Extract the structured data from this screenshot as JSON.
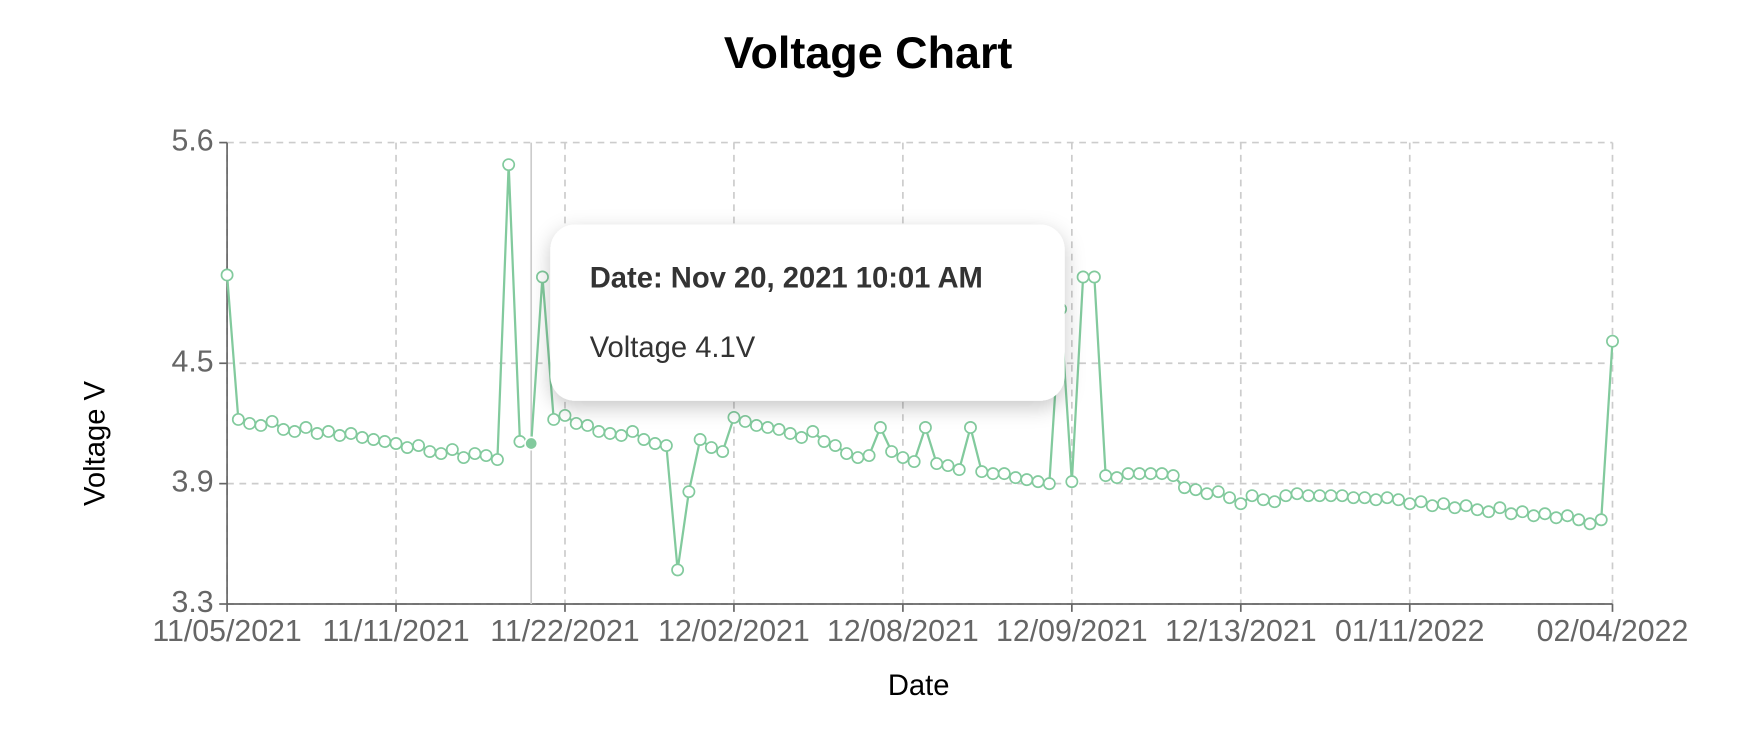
{
  "chart_data": {
    "type": "line",
    "title": "Voltage Chart",
    "x_label": "Date",
    "y_label": "Voltage V",
    "color": "#82ca9d",
    "grid": true,
    "ylim": [
      3.3,
      5.6
    ],
    "yticks": [
      3.3,
      3.9,
      4.5,
      5.6
    ],
    "categories": [
      "11/05/2021",
      null,
      null,
      null,
      null,
      null,
      null,
      null,
      null,
      null,
      null,
      null,
      null,
      null,
      null,
      "11/11/2021",
      null,
      null,
      null,
      null,
      null,
      null,
      null,
      null,
      null,
      null,
      null,
      null,
      null,
      null,
      "11/22/2021",
      null,
      null,
      null,
      null,
      null,
      null,
      null,
      null,
      null,
      null,
      null,
      null,
      null,
      null,
      "12/02/2021",
      null,
      null,
      null,
      null,
      null,
      null,
      null,
      null,
      null,
      null,
      null,
      null,
      null,
      null,
      "12/08/2021",
      null,
      null,
      null,
      null,
      null,
      null,
      null,
      null,
      null,
      null,
      null,
      null,
      null,
      null,
      "12/09/2021",
      null,
      null,
      null,
      null,
      null,
      null,
      null,
      null,
      null,
      null,
      null,
      null,
      null,
      null,
      "12/13/2021",
      null,
      null,
      null,
      null,
      null,
      null,
      null,
      null,
      null,
      null,
      null,
      null,
      null,
      null,
      "01/11/2022",
      null,
      null,
      null,
      null,
      null,
      null,
      null,
      null,
      null,
      null,
      null,
      null,
      null,
      null,
      null,
      null,
      null,
      "02/04/2022"
    ],
    "values": [
      4.94,
      4.22,
      4.2,
      4.19,
      4.21,
      4.17,
      4.16,
      4.18,
      4.15,
      4.16,
      4.14,
      4.15,
      4.13,
      4.12,
      4.11,
      4.1,
      4.08,
      4.09,
      4.06,
      4.05,
      4.07,
      4.03,
      4.05,
      4.04,
      4.02,
      5.49,
      4.11,
      4.1,
      4.93,
      4.22,
      4.24,
      4.2,
      4.19,
      4.16,
      4.15,
      4.14,
      4.16,
      4.12,
      4.1,
      4.09,
      3.47,
      3.86,
      4.12,
      4.08,
      4.06,
      4.23,
      4.21,
      4.19,
      4.18,
      4.17,
      4.15,
      4.13,
      4.16,
      4.11,
      4.09,
      4.05,
      4.03,
      4.04,
      4.18,
      4.06,
      4.03,
      4.01,
      4.18,
      4.0,
      3.99,
      3.97,
      4.18,
      3.96,
      3.95,
      3.95,
      3.93,
      3.92,
      3.91,
      3.9,
      4.77,
      3.91,
      4.93,
      4.93,
      3.94,
      3.93,
      3.95,
      3.95,
      3.95,
      3.95,
      3.94,
      3.88,
      3.87,
      3.85,
      3.86,
      3.83,
      3.8,
      3.84,
      3.82,
      3.81,
      3.84,
      3.85,
      3.84,
      3.84,
      3.84,
      3.84,
      3.83,
      3.83,
      3.82,
      3.83,
      3.82,
      3.8,
      3.81,
      3.79,
      3.8,
      3.78,
      3.79,
      3.77,
      3.76,
      3.78,
      3.75,
      3.76,
      3.74,
      3.75,
      3.73,
      3.74,
      3.72,
      3.7,
      3.72,
      4.61
    ],
    "tooltip": {
      "title": "Date: Nov 20, 2021 10:01 AM",
      "text": "Voltage 4.1V"
    }
  }
}
